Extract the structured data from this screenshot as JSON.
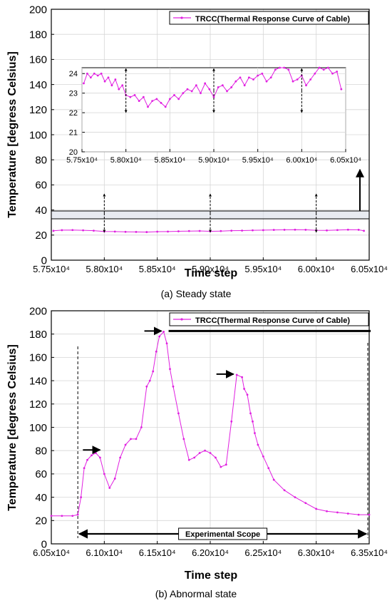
{
  "chart_data": [
    {
      "id": "steady",
      "type": "line",
      "caption": "(a) Steady state",
      "xlabel": "Time step",
      "ylabel": "Temperature [degress Celsius]",
      "xlim": [
        57500,
        60500
      ],
      "ylim": [
        0,
        200
      ],
      "xticks": [
        "5.75x10⁴",
        "5.80x10⁴",
        "5.85x10⁴",
        "5.90x10⁴",
        "5.95x10⁴",
        "6.00x10⁴",
        "6.05x10⁴"
      ],
      "xtick_values": [
        57500,
        58000,
        58500,
        59000,
        59500,
        60000,
        60500
      ],
      "yticks": [
        "0",
        "20",
        "40",
        "60",
        "80",
        "100",
        "120",
        "140",
        "160",
        "180",
        "200"
      ],
      "ytick_values": [
        0,
        20,
        40,
        60,
        80,
        100,
        120,
        140,
        160,
        180,
        200
      ],
      "grid": true,
      "legend": "top-right",
      "series": [
        {
          "name": "TRCC(Thermal Response Curve of Cable)",
          "color": "#e020e0",
          "x": [
            57520,
            57600,
            57700,
            57800,
            57900,
            58000,
            58100,
            58200,
            58300,
            58400,
            58500,
            58600,
            58700,
            58800,
            58900,
            59000,
            59100,
            59200,
            59300,
            59400,
            59500,
            59600,
            59700,
            59800,
            59900,
            60000,
            60100,
            60200,
            60300,
            60400,
            60450
          ],
          "y": [
            23.4,
            23.9,
            24.0,
            23.8,
            23.5,
            22.9,
            22.8,
            22.6,
            22.5,
            22.4,
            22.7,
            22.8,
            23.0,
            23.2,
            23.3,
            23.0,
            23.2,
            23.5,
            23.6,
            23.8,
            23.9,
            24.1,
            24.2,
            24.3,
            24.2,
            23.8,
            23.7,
            24.0,
            24.3,
            24.2,
            23.4
          ]
        }
      ],
      "annotations": [
        "dashed double-headed arrows at 5.80x10⁴, 5.90x10⁴, 6.00x10⁴",
        "zoom box 20–27 expanded into inset"
      ],
      "inset": {
        "xlim": [
          57500,
          60500
        ],
        "ylim": [
          20,
          24.3
        ],
        "xticks": [
          "5.75x10⁴",
          "5.80x10⁴",
          "5.85x10⁴",
          "5.90x10⁴",
          "5.95x10⁴",
          "6.00x10⁴",
          "6.05x10⁴"
        ],
        "xtick_values": [
          57500,
          58000,
          58500,
          59000,
          59500,
          60000,
          60500
        ],
        "yticks": [
          "20",
          "21",
          "22",
          "23",
          "24"
        ],
        "ytick_values": [
          20,
          21,
          22,
          23,
          24
        ],
        "x": [
          57520,
          57560,
          57600,
          57640,
          57680,
          57720,
          57760,
          57800,
          57840,
          57880,
          57920,
          57960,
          58000,
          58050,
          58100,
          58150,
          58200,
          58250,
          58300,
          58350,
          58400,
          58450,
          58500,
          58550,
          58600,
          58650,
          58700,
          58750,
          58800,
          58850,
          58900,
          58950,
          59000,
          59050,
          59100,
          59150,
          59200,
          59250,
          59300,
          59350,
          59400,
          59450,
          59500,
          59550,
          59600,
          59650,
          59700,
          59750,
          59800,
          59850,
          59900,
          59950,
          60000,
          60050,
          60100,
          60150,
          60200,
          60250,
          60300,
          60350,
          60400,
          60450
        ],
        "y": [
          23.5,
          24.0,
          23.8,
          24.0,
          23.9,
          24.0,
          23.6,
          23.8,
          23.4,
          23.7,
          23.2,
          23.4,
          22.9,
          22.8,
          22.9,
          22.6,
          22.8,
          22.3,
          22.6,
          22.7,
          22.5,
          22.3,
          22.7,
          22.9,
          22.7,
          23.0,
          23.2,
          23.1,
          23.4,
          23.0,
          23.5,
          23.2,
          22.8,
          23.3,
          23.4,
          23.1,
          23.3,
          23.6,
          23.8,
          23.4,
          23.8,
          23.7,
          23.9,
          24.0,
          23.6,
          23.8,
          24.2,
          24.3,
          24.3,
          24.2,
          23.6,
          23.7,
          23.9,
          23.4,
          23.7,
          24.0,
          24.3,
          24.2,
          24.3,
          24.0,
          24.1,
          23.2
        ]
      }
    },
    {
      "id": "abnormal",
      "type": "line",
      "caption": "(b) Abnormal state",
      "xlabel": "Time step",
      "ylabel": "Temperature [degress Celsius]",
      "xlim": [
        60500,
        63500
      ],
      "ylim": [
        0,
        200
      ],
      "xticks": [
        "6.05x10⁴",
        "6.10x10⁴",
        "6.15x10⁴",
        "6.20x10⁴",
        "6.25x10⁴",
        "6.30x10⁴",
        "6.35x10⁴"
      ],
      "xtick_values": [
        60500,
        61000,
        61500,
        62000,
        62500,
        63000,
        63500
      ],
      "yticks": [
        "0",
        "20",
        "40",
        "60",
        "80",
        "100",
        "120",
        "140",
        "160",
        "180",
        "200"
      ],
      "ytick_values": [
        0,
        20,
        40,
        60,
        80,
        100,
        120,
        140,
        160,
        180,
        200
      ],
      "grid": true,
      "legend": "top-right",
      "experimental_scope_label": "Experimental Scope",
      "scope_range": [
        60750,
        63500
      ],
      "series": [
        {
          "name": "TRCC(Thermal Response Curve of Cable)",
          "color": "#e020e0",
          "x": [
            60500,
            60600,
            60700,
            60750,
            60780,
            60810,
            60840,
            60880,
            60920,
            60960,
            61000,
            61050,
            61100,
            61150,
            61200,
            61250,
            61300,
            61350,
            61400,
            61430,
            61460,
            61490,
            61520,
            61560,
            61590,
            61620,
            61650,
            61700,
            61750,
            61800,
            61850,
            61900,
            61950,
            62000,
            62050,
            62100,
            62150,
            62200,
            62250,
            62300,
            62320,
            62350,
            62380,
            62400,
            62420,
            62450,
            62500,
            62550,
            62600,
            62700,
            62800,
            62900,
            63000,
            63100,
            63200,
            63300,
            63400,
            63500
          ],
          "y": [
            24,
            24,
            24,
            25,
            40,
            65,
            72,
            76,
            78,
            74,
            60,
            48,
            56,
            74,
            85,
            90,
            90,
            100,
            135,
            140,
            148,
            165,
            178,
            182,
            172,
            150,
            135,
            112,
            90,
            72,
            74,
            78,
            80,
            78,
            74,
            66,
            68,
            105,
            145,
            143,
            133,
            128,
            112,
            105,
            95,
            85,
            75,
            65,
            55,
            46,
            40,
            35,
            30,
            28,
            27,
            26,
            25,
            25
          ]
        }
      ],
      "peak_arrows_at": [
        [
          61000,
          80
        ],
        [
          61580,
          182
        ],
        [
          62260,
          145
        ]
      ]
    }
  ]
}
